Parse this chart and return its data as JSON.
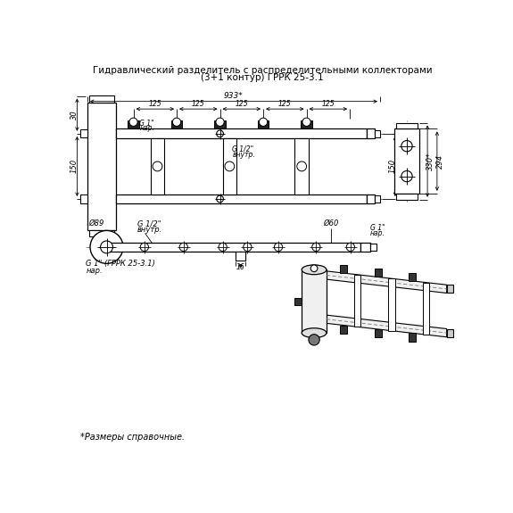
{
  "title_line1": "Гидравлический разделитель с распределительными коллекторами",
  "title_line2": "(3+1 контур) ГРРК 25-3.1",
  "footnote": "*Размеры справочные.",
  "bg_color": "#ffffff"
}
